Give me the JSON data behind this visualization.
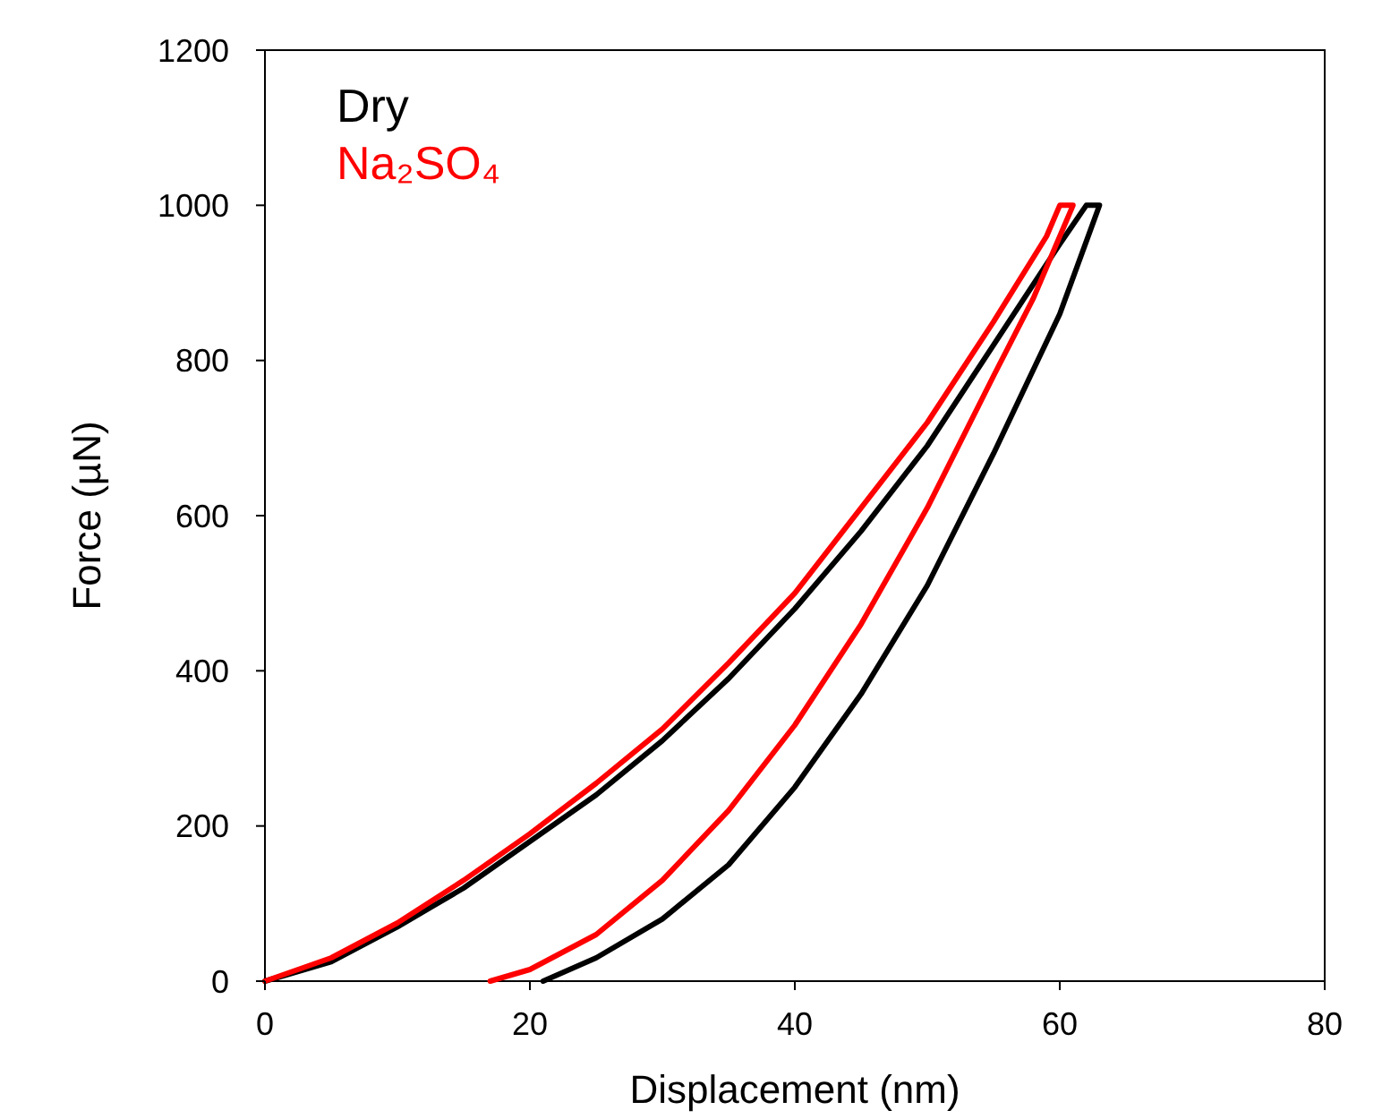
{
  "chart_data": {
    "type": "line",
    "xlabel": "Displacement (nm)",
    "ylabel": "Force (µN)",
    "xlim": [
      0,
      80
    ],
    "xticks": [
      0,
      20,
      40,
      60,
      80
    ],
    "ylim": [
      0,
      1200
    ],
    "yticks": [
      0,
      200,
      400,
      600,
      800,
      1000,
      1200
    ],
    "grid": false,
    "legend": "top left",
    "marker": "none",
    "line_style": "solid",
    "series": [
      {
        "name": "Dry",
        "color": "#000000",
        "x": [
          0,
          5,
          10,
          15,
          20,
          25,
          30,
          35,
          40,
          45,
          50,
          55,
          60,
          62,
          63,
          60,
          55,
          50,
          45,
          40,
          35,
          30,
          25,
          21
        ],
        "values": [
          0,
          25,
          70,
          120,
          180,
          240,
          310,
          390,
          480,
          580,
          690,
          820,
          950,
          1000,
          1000,
          860,
          680,
          510,
          370,
          250,
          150,
          80,
          30,
          0
        ]
      },
      {
        "name": "Na₂SO₄",
        "color": "#ff0000",
        "x": [
          0,
          5,
          10,
          15,
          20,
          25,
          30,
          35,
          40,
          45,
          50,
          55,
          59,
          60,
          61,
          58,
          55,
          50,
          45,
          40,
          35,
          30,
          25,
          20,
          17
        ],
        "values": [
          0,
          30,
          75,
          130,
          190,
          255,
          325,
          410,
          500,
          610,
          720,
          850,
          960,
          1000,
          1000,
          880,
          780,
          610,
          460,
          330,
          220,
          130,
          60,
          15,
          0
        ]
      }
    ]
  }
}
